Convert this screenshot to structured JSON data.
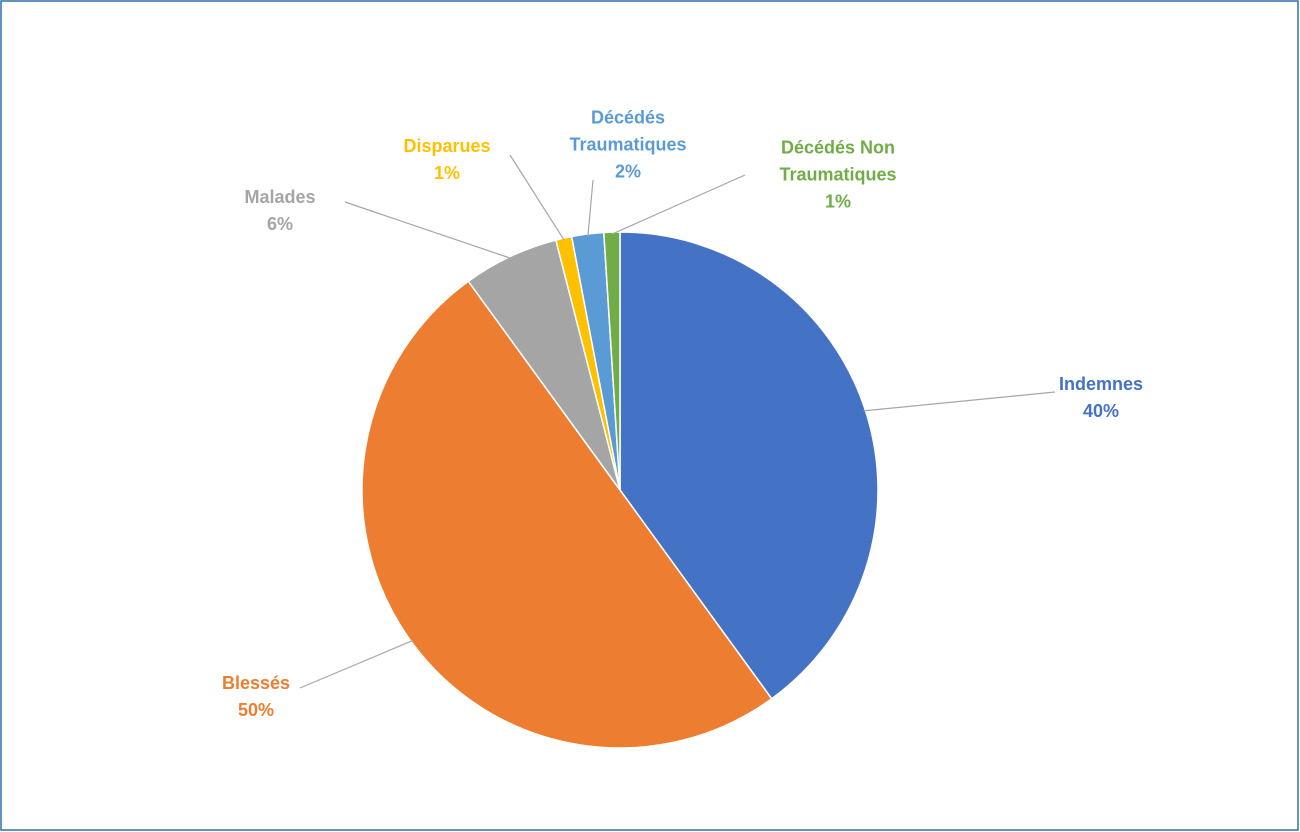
{
  "chart_data": {
    "type": "pie",
    "categories": [
      "Indemnes",
      "Blessés",
      "Malades",
      "Disparues",
      "Décédés Traumatiques",
      "Décédés Non Traumatiques"
    ],
    "values": [
      40,
      50,
      6,
      1,
      2,
      1
    ],
    "value_labels": [
      "40%",
      "50%",
      "6%",
      "1%",
      "2%",
      "1%"
    ],
    "colors": [
      "#4472c4",
      "#ed7d31",
      "#a5a5a5",
      "#ffc000",
      "#5b9bd5",
      "#70ad47"
    ]
  }
}
